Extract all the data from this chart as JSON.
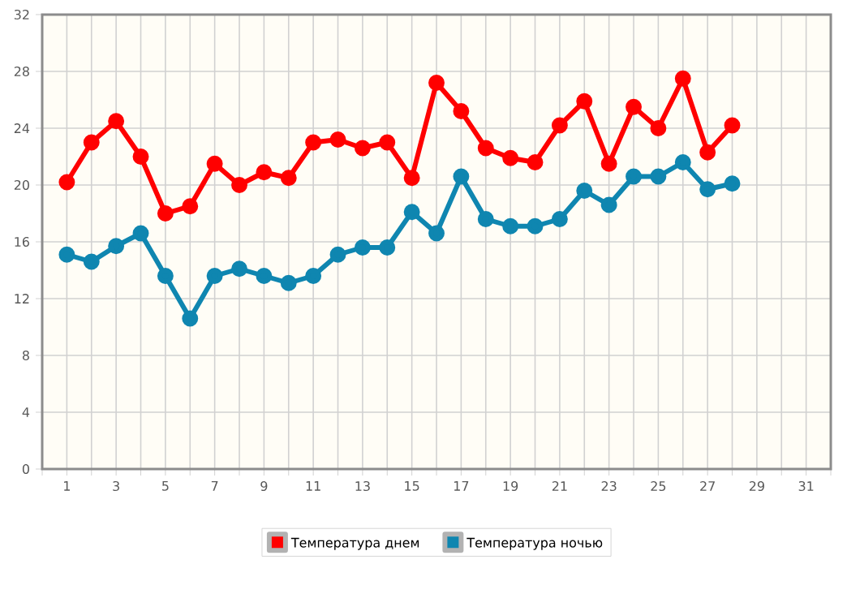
{
  "chart_data": {
    "type": "line",
    "x": [
      1,
      2,
      3,
      4,
      5,
      6,
      7,
      8,
      9,
      10,
      11,
      12,
      13,
      14,
      15,
      16,
      17,
      18,
      19,
      20,
      21,
      22,
      23,
      24,
      25,
      26,
      27,
      28
    ],
    "series": [
      {
        "name": "Температура днем",
        "color": "#ff0000",
        "values": [
          20.2,
          23.0,
          24.5,
          22.0,
          18.0,
          18.5,
          21.5,
          20.0,
          20.9,
          20.5,
          23.0,
          23.2,
          22.6,
          23.0,
          20.5,
          27.2,
          25.2,
          22.6,
          21.9,
          21.6,
          24.2,
          25.9,
          21.5,
          25.5,
          24.0,
          27.5,
          22.3,
          24.2
        ]
      },
      {
        "name": "Температура ночью",
        "color": "#0f86b0",
        "values": [
          15.1,
          14.6,
          15.7,
          16.6,
          13.6,
          10.6,
          13.6,
          14.1,
          13.6,
          13.1,
          13.6,
          15.1,
          15.6,
          15.6,
          18.1,
          16.6,
          20.6,
          17.6,
          17.1,
          17.1,
          17.6,
          19.6,
          18.6,
          20.6,
          20.6,
          21.6,
          19.7,
          20.1
        ]
      }
    ],
    "xlim": [
      0,
      32
    ],
    "xticks": [
      {
        "value": 0,
        "label": null
      },
      1,
      {
        "value": 2,
        "label": null
      },
      3,
      {
        "value": 4,
        "label": null
      },
      5,
      {
        "value": 6,
        "label": null
      },
      7,
      {
        "value": 8,
        "label": null
      },
      9,
      {
        "value": 10,
        "label": null
      },
      11,
      {
        "value": 12,
        "label": null
      },
      13,
      {
        "value": 14,
        "label": null
      },
      15,
      {
        "value": 16,
        "label": null
      },
      17,
      {
        "value": 18,
        "label": null
      },
      19,
      {
        "value": 20,
        "label": null
      },
      21,
      {
        "value": 22,
        "label": null
      },
      23,
      {
        "value": 24,
        "label": null
      },
      25,
      {
        "value": 26,
        "label": null
      },
      27,
      {
        "value": 28,
        "label": null
      },
      29,
      {
        "value": 30,
        "label": null
      },
      31,
      {
        "value": 32,
        "label": null
      }
    ],
    "ylim": [
      0,
      32
    ],
    "yticks": [
      0,
      4,
      8,
      12,
      16,
      20,
      24,
      28,
      32
    ],
    "grid": true,
    "legend": "bottom",
    "marker": "circle",
    "line_style": "solid"
  }
}
